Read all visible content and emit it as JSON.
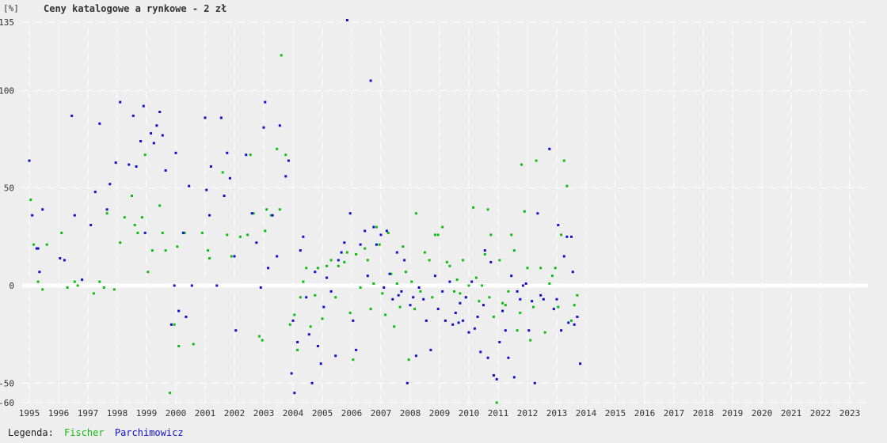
{
  "chart_data": {
    "type": "scatter",
    "unit_label": "[%]",
    "title": "Ceny katalogowe a rynkowe - 2 zł",
    "xlim": [
      1995,
      2024
    ],
    "ylim": [
      -60,
      135
    ],
    "x_ticks": [
      "1995",
      "1996",
      "1997",
      "1998",
      "1999",
      "2000",
      "2001",
      "2002",
      "2003",
      "2004",
      "2005",
      "2006",
      "2007",
      "2008",
      "2009",
      "2010",
      "2011",
      "2012",
      "2013",
      "2014",
      "2015",
      "2016",
      "2017",
      "2018",
      "2019",
      "2020",
      "2021",
      "2022",
      "2023"
    ],
    "y_ticks": [
      135,
      100,
      50,
      0,
      -50,
      -60
    ],
    "grid": true,
    "legend_label": "Legenda:",
    "series": [
      {
        "name": "Fischer",
        "color": "#11bb11",
        "points": [
          [
            1995.05,
            44
          ],
          [
            1995.15,
            21
          ],
          [
            1995.3,
            2
          ],
          [
            1995.45,
            -2
          ],
          [
            1995.6,
            21
          ],
          [
            1996.1,
            27
          ],
          [
            1996.3,
            -1
          ],
          [
            1996.55,
            2
          ],
          [
            1996.65,
            0
          ],
          [
            1997.2,
            -4
          ],
          [
            1997.4,
            2
          ],
          [
            1997.55,
            -1
          ],
          [
            1997.65,
            37
          ],
          [
            1997.9,
            -2
          ],
          [
            1998.1,
            22
          ],
          [
            1998.25,
            35
          ],
          [
            1998.5,
            46
          ],
          [
            1998.6,
            31
          ],
          [
            1998.7,
            27
          ],
          [
            1998.85,
            35
          ],
          [
            1998.95,
            67
          ],
          [
            1999.05,
            7
          ],
          [
            1999.2,
            18
          ],
          [
            1999.45,
            41
          ],
          [
            1999.55,
            27
          ],
          [
            1999.65,
            18
          ],
          [
            1999.8,
            -55
          ],
          [
            1999.95,
            -20
          ],
          [
            2000.05,
            20
          ],
          [
            2000.1,
            -31
          ],
          [
            2000.3,
            27
          ],
          [
            2000.6,
            -30
          ],
          [
            2000.9,
            27
          ],
          [
            2001.1,
            18
          ],
          [
            2001.15,
            14
          ],
          [
            2001.6,
            58
          ],
          [
            2001.75,
            26
          ],
          [
            2001.9,
            15
          ],
          [
            2002.2,
            25
          ],
          [
            2002.45,
            26
          ],
          [
            2002.55,
            67
          ],
          [
            2002.65,
            37
          ],
          [
            2002.85,
            -26
          ],
          [
            2002.95,
            -28
          ],
          [
            2003.05,
            28
          ],
          [
            2003.1,
            39
          ],
          [
            2003.25,
            36
          ],
          [
            2003.45,
            70
          ],
          [
            2003.55,
            39
          ],
          [
            2003.6,
            118
          ],
          [
            2003.75,
            67
          ],
          [
            2003.9,
            -20
          ],
          [
            2004.05,
            -15
          ],
          [
            2004.15,
            -33
          ],
          [
            2004.25,
            -6
          ],
          [
            2004.35,
            2
          ],
          [
            2004.45,
            9
          ],
          [
            2004.6,
            -21
          ],
          [
            2004.75,
            -5
          ],
          [
            2004.85,
            9
          ],
          [
            2005.0,
            -17
          ],
          [
            2005.15,
            10
          ],
          [
            2005.3,
            13
          ],
          [
            2005.45,
            -6
          ],
          [
            2005.55,
            10
          ],
          [
            2005.75,
            12
          ],
          [
            2005.85,
            17
          ],
          [
            2005.95,
            -14
          ],
          [
            2006.05,
            -38
          ],
          [
            2006.15,
            16
          ],
          [
            2006.3,
            -1
          ],
          [
            2006.45,
            19
          ],
          [
            2006.55,
            13
          ],
          [
            2006.65,
            -12
          ],
          [
            2006.75,
            1
          ],
          [
            2006.85,
            30
          ],
          [
            2006.95,
            21
          ],
          [
            2007.05,
            -4
          ],
          [
            2007.15,
            -15
          ],
          [
            2007.25,
            27
          ],
          [
            2007.35,
            6
          ],
          [
            2007.45,
            -21
          ],
          [
            2007.55,
            1
          ],
          [
            2007.65,
            -11
          ],
          [
            2007.75,
            20
          ],
          [
            2007.85,
            7
          ],
          [
            2007.95,
            -38
          ],
          [
            2008.05,
            2
          ],
          [
            2008.15,
            -12
          ],
          [
            2008.2,
            37
          ],
          [
            2008.35,
            -3
          ],
          [
            2008.5,
            17
          ],
          [
            2008.65,
            13
          ],
          [
            2008.75,
            -6
          ],
          [
            2008.85,
            26
          ],
          [
            2008.95,
            26
          ],
          [
            2009.1,
            30
          ],
          [
            2009.25,
            12
          ],
          [
            2009.35,
            10
          ],
          [
            2009.5,
            -3
          ],
          [
            2009.6,
            3
          ],
          [
            2009.7,
            -4
          ],
          [
            2009.8,
            13
          ],
          [
            2009.9,
            -6
          ],
          [
            2010.0,
            0
          ],
          [
            2010.15,
            40
          ],
          [
            2010.25,
            4
          ],
          [
            2010.35,
            -8
          ],
          [
            2010.45,
            0
          ],
          [
            2010.55,
            16
          ],
          [
            2010.65,
            39
          ],
          [
            2010.7,
            -6
          ],
          [
            2010.75,
            26
          ],
          [
            2010.85,
            -16
          ],
          [
            2010.95,
            -60
          ],
          [
            2011.05,
            13
          ],
          [
            2011.15,
            -9
          ],
          [
            2011.25,
            -10
          ],
          [
            2011.35,
            -3
          ],
          [
            2011.45,
            26
          ],
          [
            2011.55,
            18
          ],
          [
            2011.65,
            -23
          ],
          [
            2011.75,
            -14
          ],
          [
            2011.8,
            62
          ],
          [
            2011.9,
            38
          ],
          [
            2012.0,
            9
          ],
          [
            2012.1,
            -28
          ],
          [
            2012.2,
            -11
          ],
          [
            2012.3,
            64
          ],
          [
            2012.45,
            9
          ],
          [
            2012.6,
            -24
          ],
          [
            2012.75,
            1
          ],
          [
            2012.85,
            5
          ],
          [
            2012.95,
            9
          ],
          [
            2013.05,
            -11
          ],
          [
            2013.15,
            26
          ],
          [
            2013.25,
            64
          ],
          [
            2013.35,
            51
          ],
          [
            2013.5,
            -18
          ],
          [
            2013.6,
            -10
          ],
          [
            2013.7,
            -5
          ]
        ]
      },
      {
        "name": "Parchimowicz",
        "color": "#1111cc",
        "points": [
          [
            1995.0,
            64
          ],
          [
            1995.1,
            36
          ],
          [
            1995.25,
            19
          ],
          [
            1995.3,
            19
          ],
          [
            1995.35,
            7
          ],
          [
            1995.45,
            39
          ],
          [
            1996.05,
            14
          ],
          [
            1996.2,
            13
          ],
          [
            1996.45,
            87
          ],
          [
            1996.55,
            36
          ],
          [
            1996.8,
            3
          ],
          [
            1997.1,
            31
          ],
          [
            1997.25,
            48
          ],
          [
            1997.4,
            83
          ],
          [
            1997.65,
            39
          ],
          [
            1997.75,
            52
          ],
          [
            1997.95,
            63
          ],
          [
            1998.1,
            94
          ],
          [
            1998.4,
            62
          ],
          [
            1998.55,
            87
          ],
          [
            1998.65,
            61
          ],
          [
            1998.8,
            74
          ],
          [
            1998.9,
            92
          ],
          [
            1998.95,
            27
          ],
          [
            1999.15,
            78
          ],
          [
            1999.25,
            73
          ],
          [
            1999.35,
            82
          ],
          [
            1999.45,
            89
          ],
          [
            1999.55,
            77
          ],
          [
            1999.65,
            59
          ],
          [
            1999.85,
            -20
          ],
          [
            1999.95,
            0
          ],
          [
            2000.0,
            68
          ],
          [
            2000.1,
            -13
          ],
          [
            2000.25,
            27
          ],
          [
            2000.35,
            -16
          ],
          [
            2000.45,
            51
          ],
          [
            2000.55,
            0
          ],
          [
            2001.0,
            86
          ],
          [
            2001.05,
            49
          ],
          [
            2001.15,
            36
          ],
          [
            2001.2,
            61
          ],
          [
            2001.4,
            0
          ],
          [
            2001.55,
            86
          ],
          [
            2001.65,
            46
          ],
          [
            2001.75,
            68
          ],
          [
            2001.85,
            55
          ],
          [
            2002.0,
            15
          ],
          [
            2002.05,
            -23
          ],
          [
            2002.4,
            67
          ],
          [
            2002.6,
            37
          ],
          [
            2002.75,
            22
          ],
          [
            2002.9,
            -1
          ],
          [
            2003.0,
            81
          ],
          [
            2003.05,
            94
          ],
          [
            2003.15,
            9
          ],
          [
            2003.3,
            36
          ],
          [
            2003.45,
            15
          ],
          [
            2003.55,
            82
          ],
          [
            2003.75,
            56
          ],
          [
            2003.85,
            64
          ],
          [
            2003.95,
            -45
          ],
          [
            2004.0,
            -18
          ],
          [
            2004.05,
            -55
          ],
          [
            2004.15,
            -29
          ],
          [
            2004.25,
            18
          ],
          [
            2004.35,
            25
          ],
          [
            2004.45,
            -6
          ],
          [
            2004.55,
            -25
          ],
          [
            2004.65,
            -50
          ],
          [
            2004.75,
            7
          ],
          [
            2004.85,
            -31
          ],
          [
            2004.95,
            -40
          ],
          [
            2005.05,
            -11
          ],
          [
            2005.15,
            4
          ],
          [
            2005.3,
            -3
          ],
          [
            2005.45,
            -36
          ],
          [
            2005.55,
            13
          ],
          [
            2005.65,
            17
          ],
          [
            2005.75,
            22
          ],
          [
            2005.85,
            136
          ],
          [
            2005.95,
            37
          ],
          [
            2006.05,
            -18
          ],
          [
            2006.15,
            -33
          ],
          [
            2006.3,
            21
          ],
          [
            2006.45,
            28
          ],
          [
            2006.55,
            5
          ],
          [
            2006.65,
            105
          ],
          [
            2006.75,
            30
          ],
          [
            2006.85,
            21
          ],
          [
            2007.0,
            26
          ],
          [
            2007.1,
            -1
          ],
          [
            2007.2,
            28
          ],
          [
            2007.3,
            6
          ],
          [
            2007.4,
            -7
          ],
          [
            2007.55,
            17
          ],
          [
            2007.6,
            -5
          ],
          [
            2007.7,
            -3
          ],
          [
            2007.8,
            13
          ],
          [
            2007.9,
            -50
          ],
          [
            2008.0,
            -10
          ],
          [
            2008.1,
            -6
          ],
          [
            2008.2,
            -36
          ],
          [
            2008.3,
            -1
          ],
          [
            2008.45,
            -7
          ],
          [
            2008.55,
            -18
          ],
          [
            2008.7,
            -33
          ],
          [
            2008.85,
            5
          ],
          [
            2008.95,
            -12
          ],
          [
            2009.1,
            -3
          ],
          [
            2009.2,
            -18
          ],
          [
            2009.35,
            2
          ],
          [
            2009.45,
            -20
          ],
          [
            2009.55,
            -14
          ],
          [
            2009.65,
            -19
          ],
          [
            2009.7,
            -9
          ],
          [
            2009.8,
            -18
          ],
          [
            2009.9,
            -6
          ],
          [
            2010.0,
            -24
          ],
          [
            2010.1,
            2
          ],
          [
            2010.2,
            -22
          ],
          [
            2010.3,
            -16
          ],
          [
            2010.4,
            -34
          ],
          [
            2010.5,
            -10
          ],
          [
            2010.55,
            18
          ],
          [
            2010.65,
            -37
          ],
          [
            2010.75,
            12
          ],
          [
            2010.85,
            -46
          ],
          [
            2010.95,
            -48
          ],
          [
            2011.05,
            -29
          ],
          [
            2011.15,
            -13
          ],
          [
            2011.25,
            -23
          ],
          [
            2011.35,
            -37
          ],
          [
            2011.45,
            5
          ],
          [
            2011.55,
            -47
          ],
          [
            2011.65,
            -3
          ],
          [
            2011.75,
            -7
          ],
          [
            2011.85,
            0
          ],
          [
            2011.95,
            1
          ],
          [
            2012.05,
            -23
          ],
          [
            2012.15,
            -8
          ],
          [
            2012.25,
            -50
          ],
          [
            2012.35,
            37
          ],
          [
            2012.45,
            -5
          ],
          [
            2012.55,
            -7
          ],
          [
            2012.75,
            70
          ],
          [
            2012.9,
            -12
          ],
          [
            2013.0,
            -7
          ],
          [
            2013.05,
            31
          ],
          [
            2013.15,
            -23
          ],
          [
            2013.25,
            15
          ],
          [
            2013.35,
            25
          ],
          [
            2013.4,
            -19
          ],
          [
            2013.5,
            25
          ],
          [
            2013.55,
            7
          ],
          [
            2013.6,
            -20
          ],
          [
            2013.7,
            -16
          ],
          [
            2013.8,
            -40
          ]
        ]
      }
    ]
  }
}
